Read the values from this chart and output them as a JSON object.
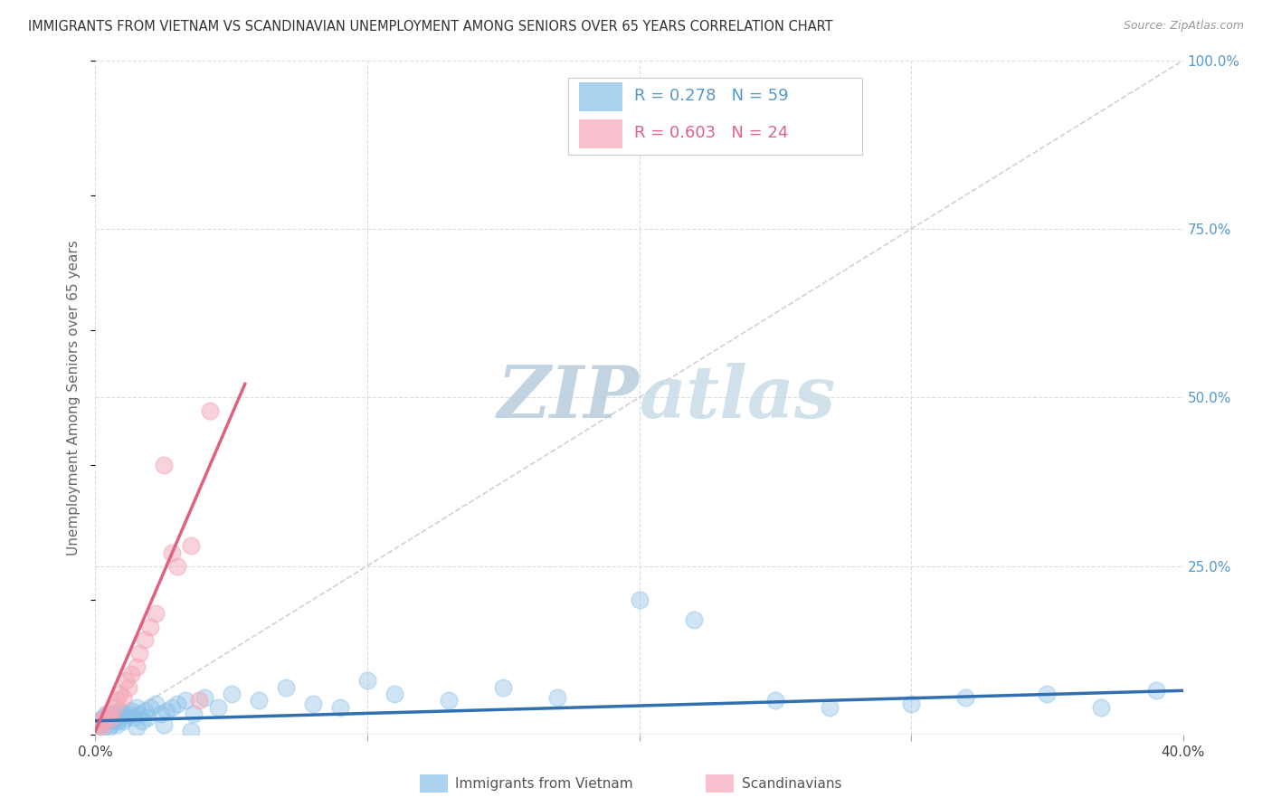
{
  "title": "IMMIGRANTS FROM VIETNAM VS SCANDINAVIAN UNEMPLOYMENT AMONG SENIORS OVER 65 YEARS CORRELATION CHART",
  "source_text": "Source: ZipAtlas.com",
  "ylabel": "Unemployment Among Seniors over 65 years",
  "legend_label1": "Immigrants from Vietnam",
  "legend_label2": "Scandinavians",
  "legend_r1": "R = 0.278",
  "legend_n1": "N = 59",
  "legend_r2": "R = 0.603",
  "legend_n2": "N = 24",
  "background_color": "#ffffff",
  "grid_color": "#dddddd",
  "blue_color": "#88c0e8",
  "pink_color": "#f4a8b8",
  "blue_line_color": "#3070b0",
  "pink_line_color": "#e06080",
  "watermark_color_zip": "#b8ccdc",
  "watermark_color_atlas": "#c8dce8",
  "right_axis_color": "#5599cc",
  "xlim": [
    0.0,
    0.4
  ],
  "ylim": [
    0.0,
    1.0
  ],
  "yticks_right": [
    0.0,
    0.25,
    0.5,
    0.75,
    1.0
  ],
  "ytick_labels_right": [
    "",
    "25.0%",
    "50.0%",
    "75.0%",
    "100.0%"
  ],
  "xticks": [
    0.0,
    0.1,
    0.2,
    0.3,
    0.4
  ],
  "xtick_labels": [
    "0.0%",
    "",
    "",
    "",
    "40.0%"
  ],
  "blue_scatter_x": [
    0.001,
    0.002,
    0.003,
    0.003,
    0.004,
    0.004,
    0.005,
    0.005,
    0.006,
    0.006,
    0.007,
    0.007,
    0.008,
    0.008,
    0.009,
    0.009,
    0.01,
    0.01,
    0.011,
    0.012,
    0.013,
    0.014,
    0.015,
    0.016,
    0.017,
    0.018,
    0.019,
    0.02,
    0.022,
    0.024,
    0.026,
    0.028,
    0.03,
    0.033,
    0.036,
    0.04,
    0.045,
    0.05,
    0.06,
    0.07,
    0.08,
    0.09,
    0.1,
    0.11,
    0.13,
    0.15,
    0.17,
    0.2,
    0.22,
    0.25,
    0.27,
    0.3,
    0.32,
    0.35,
    0.37,
    0.39,
    0.015,
    0.025,
    0.035
  ],
  "blue_scatter_y": [
    0.02,
    0.015,
    0.01,
    0.025,
    0.02,
    0.03,
    0.01,
    0.025,
    0.02,
    0.015,
    0.025,
    0.03,
    0.015,
    0.02,
    0.025,
    0.035,
    0.02,
    0.03,
    0.025,
    0.03,
    0.035,
    0.025,
    0.04,
    0.03,
    0.02,
    0.035,
    0.025,
    0.04,
    0.045,
    0.03,
    0.035,
    0.04,
    0.045,
    0.05,
    0.03,
    0.055,
    0.04,
    0.06,
    0.05,
    0.07,
    0.045,
    0.04,
    0.08,
    0.06,
    0.05,
    0.07,
    0.055,
    0.2,
    0.17,
    0.05,
    0.04,
    0.045,
    0.055,
    0.06,
    0.04,
    0.065,
    0.01,
    0.015,
    0.005
  ],
  "pink_scatter_x": [
    0.001,
    0.002,
    0.003,
    0.004,
    0.005,
    0.006,
    0.007,
    0.008,
    0.009,
    0.01,
    0.011,
    0.012,
    0.013,
    0.015,
    0.016,
    0.018,
    0.02,
    0.022,
    0.025,
    0.028,
    0.03,
    0.035,
    0.038,
    0.042
  ],
  "pink_scatter_y": [
    0.01,
    0.02,
    0.015,
    0.025,
    0.03,
    0.025,
    0.04,
    0.05,
    0.06,
    0.055,
    0.08,
    0.07,
    0.09,
    0.1,
    0.12,
    0.14,
    0.16,
    0.18,
    0.4,
    0.27,
    0.25,
    0.28,
    0.05,
    0.48
  ],
  "blue_trend_x": [
    0.0,
    0.4
  ],
  "blue_trend_y": [
    0.02,
    0.065
  ],
  "pink_trend_x": [
    0.0,
    0.055
  ],
  "pink_trend_y": [
    0.005,
    0.52
  ],
  "diag_line_x": [
    0.0,
    0.4
  ],
  "diag_line_y": [
    0.0,
    1.0
  ]
}
